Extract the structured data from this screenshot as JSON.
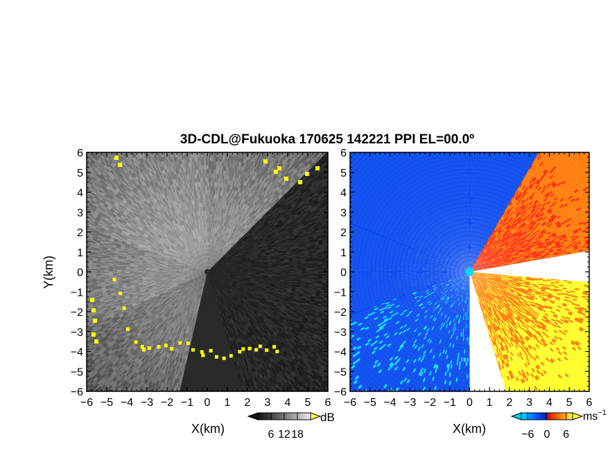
{
  "title": "3D-CDL@Fukuoka 170625 142221 PPI EL=00.0º",
  "chart_data": [
    {
      "type": "heatmap",
      "panel": "left",
      "xlabel": "X(km)",
      "ylabel": "Y(km)",
      "xlim": [
        -6,
        6
      ],
      "ylim": [
        -6,
        6
      ],
      "xticks": [
        "−6",
        "−5",
        "−4",
        "−3",
        "−2",
        "−1",
        "0",
        "1",
        "2",
        "3",
        "4",
        "5",
        "6"
      ],
      "yticks": [
        "6",
        "5",
        "4",
        "3",
        "2",
        "1",
        "0",
        "−1",
        "−2",
        "−3",
        "−4",
        "−5",
        "−6"
      ],
      "colorbar": {
        "label": "dB",
        "ticks": [
          "6",
          "12",
          "18"
        ],
        "range": [
          0,
          24
        ]
      },
      "colors": {
        "low": "#222222",
        "high": "#e0e0e0",
        "flag": "#ffff00"
      },
      "approx_sectors": [
        {
          "from_deg": 193,
          "to_deg": 245,
          "level": "mid-bright"
        },
        {
          "from_deg": 245,
          "to_deg": 290,
          "level": "bright"
        },
        {
          "from_deg": 290,
          "to_deg": 360,
          "level": "brightest"
        },
        {
          "from_deg": 0,
          "to_deg": 45,
          "level": "bright"
        },
        {
          "from_deg": 45,
          "to_deg": 163,
          "level": "dark"
        }
      ]
    },
    {
      "type": "heatmap",
      "panel": "right",
      "xlabel": "X(km)",
      "xlim": [
        -6,
        6
      ],
      "ylim": [
        -6,
        6
      ],
      "xticks": [
        "−6",
        "−5",
        "−4",
        "−3",
        "−2",
        "−1",
        "0",
        "1",
        "2",
        "3",
        "4",
        "5",
        "6"
      ],
      "yticks": [
        "6",
        "5",
        "4",
        "3",
        "2",
        "1",
        "0",
        "−1",
        "−2",
        "−3",
        "−4",
        "−5",
        "−6"
      ],
      "colorbar": {
        "label": "ms",
        "label_sup": "−1",
        "ticks": [
          "−6",
          "0",
          "6"
        ],
        "range": [
          -8,
          8
        ]
      },
      "colors": {
        "neg_far": "#00ddff",
        "neg": "#0044ee",
        "zero": "#ff2200",
        "pos": "#ff7700",
        "pos_far": "#ffff22"
      },
      "approx_velocity_sectors": [
        {
          "from_deg": 180,
          "to_deg": 250,
          "velocity": -5
        },
        {
          "from_deg": 250,
          "to_deg": 292,
          "velocity": -4
        },
        {
          "from_deg": 292,
          "to_deg": 360,
          "velocity": -3
        },
        {
          "from_deg": 0,
          "to_deg": 30,
          "velocity": -2
        },
        {
          "from_deg": 30,
          "to_deg": 90,
          "velocity": 1
        },
        {
          "from_deg": 90,
          "to_deg": 165,
          "velocity": 4
        }
      ]
    }
  ]
}
